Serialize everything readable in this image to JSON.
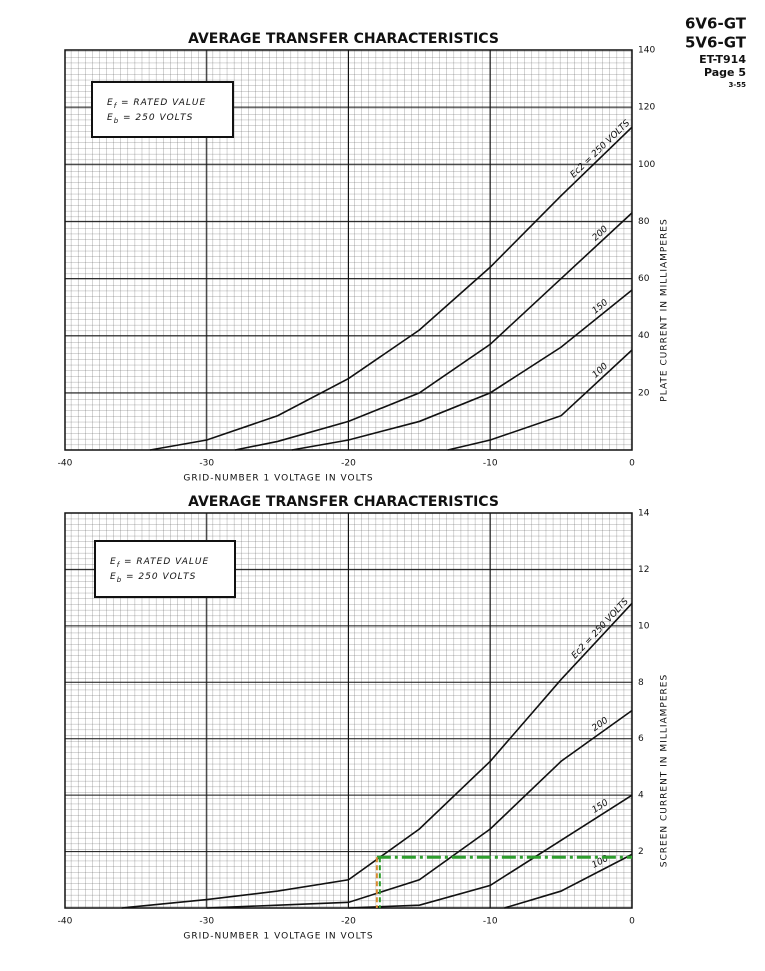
{
  "header": {
    "tube": "6V6-GT",
    "tube_alt": "5V6-GT",
    "doc": "ET-T914",
    "page": "Page 5",
    "date": "3-55"
  },
  "chart_data": [
    {
      "type": "line",
      "title": "AVERAGE TRANSFER CHARACTERISTICS",
      "x_label": "GRID-NUMBER 1 VOLTAGE IN VOLTS",
      "y_label": "PLATE CURRENT IN MILLIAMPERES",
      "box": [
        [
          "E",
          "f",
          " = RATED VALUE"
        ],
        [
          "E",
          "b",
          " = 250 VOLTS"
        ]
      ],
      "xlim": [
        -40,
        0
      ],
      "xticks": [
        -40,
        -30,
        -20,
        -10,
        0
      ],
      "ylim": [
        0,
        140
      ],
      "yticks": [
        20,
        40,
        60,
        80,
        100,
        120,
        140
      ],
      "grid": true,
      "series": [
        {
          "name": "Ec2 = 250 VOLTS",
          "color": "#111111",
          "x": [
            -34,
            -30,
            -25,
            -20,
            -15,
            -10,
            -5,
            0
          ],
          "values": [
            0,
            3.5,
            12,
            25,
            42,
            64,
            89,
            113
          ]
        },
        {
          "name": "200",
          "color": "#111111",
          "x": [
            -28,
            -25,
            -20,
            -15,
            -10,
            -5,
            0
          ],
          "values": [
            0,
            3,
            10,
            20,
            37,
            60,
            83
          ]
        },
        {
          "name": "150",
          "color": "#111111",
          "x": [
            -24,
            -20,
            -15,
            -10,
            -5,
            0
          ],
          "values": [
            0,
            3.5,
            10,
            20,
            36,
            56
          ]
        },
        {
          "name": "100",
          "color": "#111111",
          "x": [
            -13,
            -10,
            -5,
            0
          ],
          "values": [
            0,
            3.5,
            12,
            35
          ]
        }
      ]
    },
    {
      "type": "line",
      "title": "AVERAGE TRANSFER CHARACTERISTICS",
      "x_label": "GRID-NUMBER 1 VOLTAGE IN VOLTS",
      "y_label": "SCREEN CURRENT IN MILLIAMPERES",
      "box": [
        [
          "E",
          "f",
          " = RATED VALUE"
        ],
        [
          "E",
          "b",
          " = 250 VOLTS"
        ]
      ],
      "xlim": [
        -40,
        0
      ],
      "xticks": [
        -40,
        -30,
        -20,
        -10,
        0
      ],
      "ylim": [
        0,
        14
      ],
      "yticks": [
        2,
        4,
        6,
        8,
        10,
        12,
        14
      ],
      "grid": true,
      "series": [
        {
          "name": "Ec2 = 250 VOLTS",
          "color": "#111111",
          "x": [
            -36,
            -30,
            -25,
            -20,
            -15,
            -10,
            -5,
            0
          ],
          "values": [
            0,
            0.3,
            0.6,
            1.0,
            2.8,
            5.2,
            8.1,
            10.8
          ]
        },
        {
          "name": "200",
          "color": "#111111",
          "x": [
            -30,
            -25,
            -20,
            -15,
            -10,
            -5,
            0
          ],
          "values": [
            0,
            0.1,
            0.2,
            1.0,
            2.8,
            5.2,
            7.0
          ]
        },
        {
          "name": "150",
          "color": "#111111",
          "x": [
            -20,
            -15,
            -10,
            -5,
            0
          ],
          "values": [
            0,
            0.1,
            0.8,
            2.4,
            4.0
          ]
        },
        {
          "name": "100",
          "color": "#111111",
          "x": [
            -9,
            -5,
            0
          ],
          "values": [
            0,
            0.6,
            1.9
          ]
        }
      ],
      "markers": {
        "x": -18,
        "y": 1.8,
        "color_h": "#2e9e2e",
        "color_v": "#d98a30"
      }
    }
  ]
}
